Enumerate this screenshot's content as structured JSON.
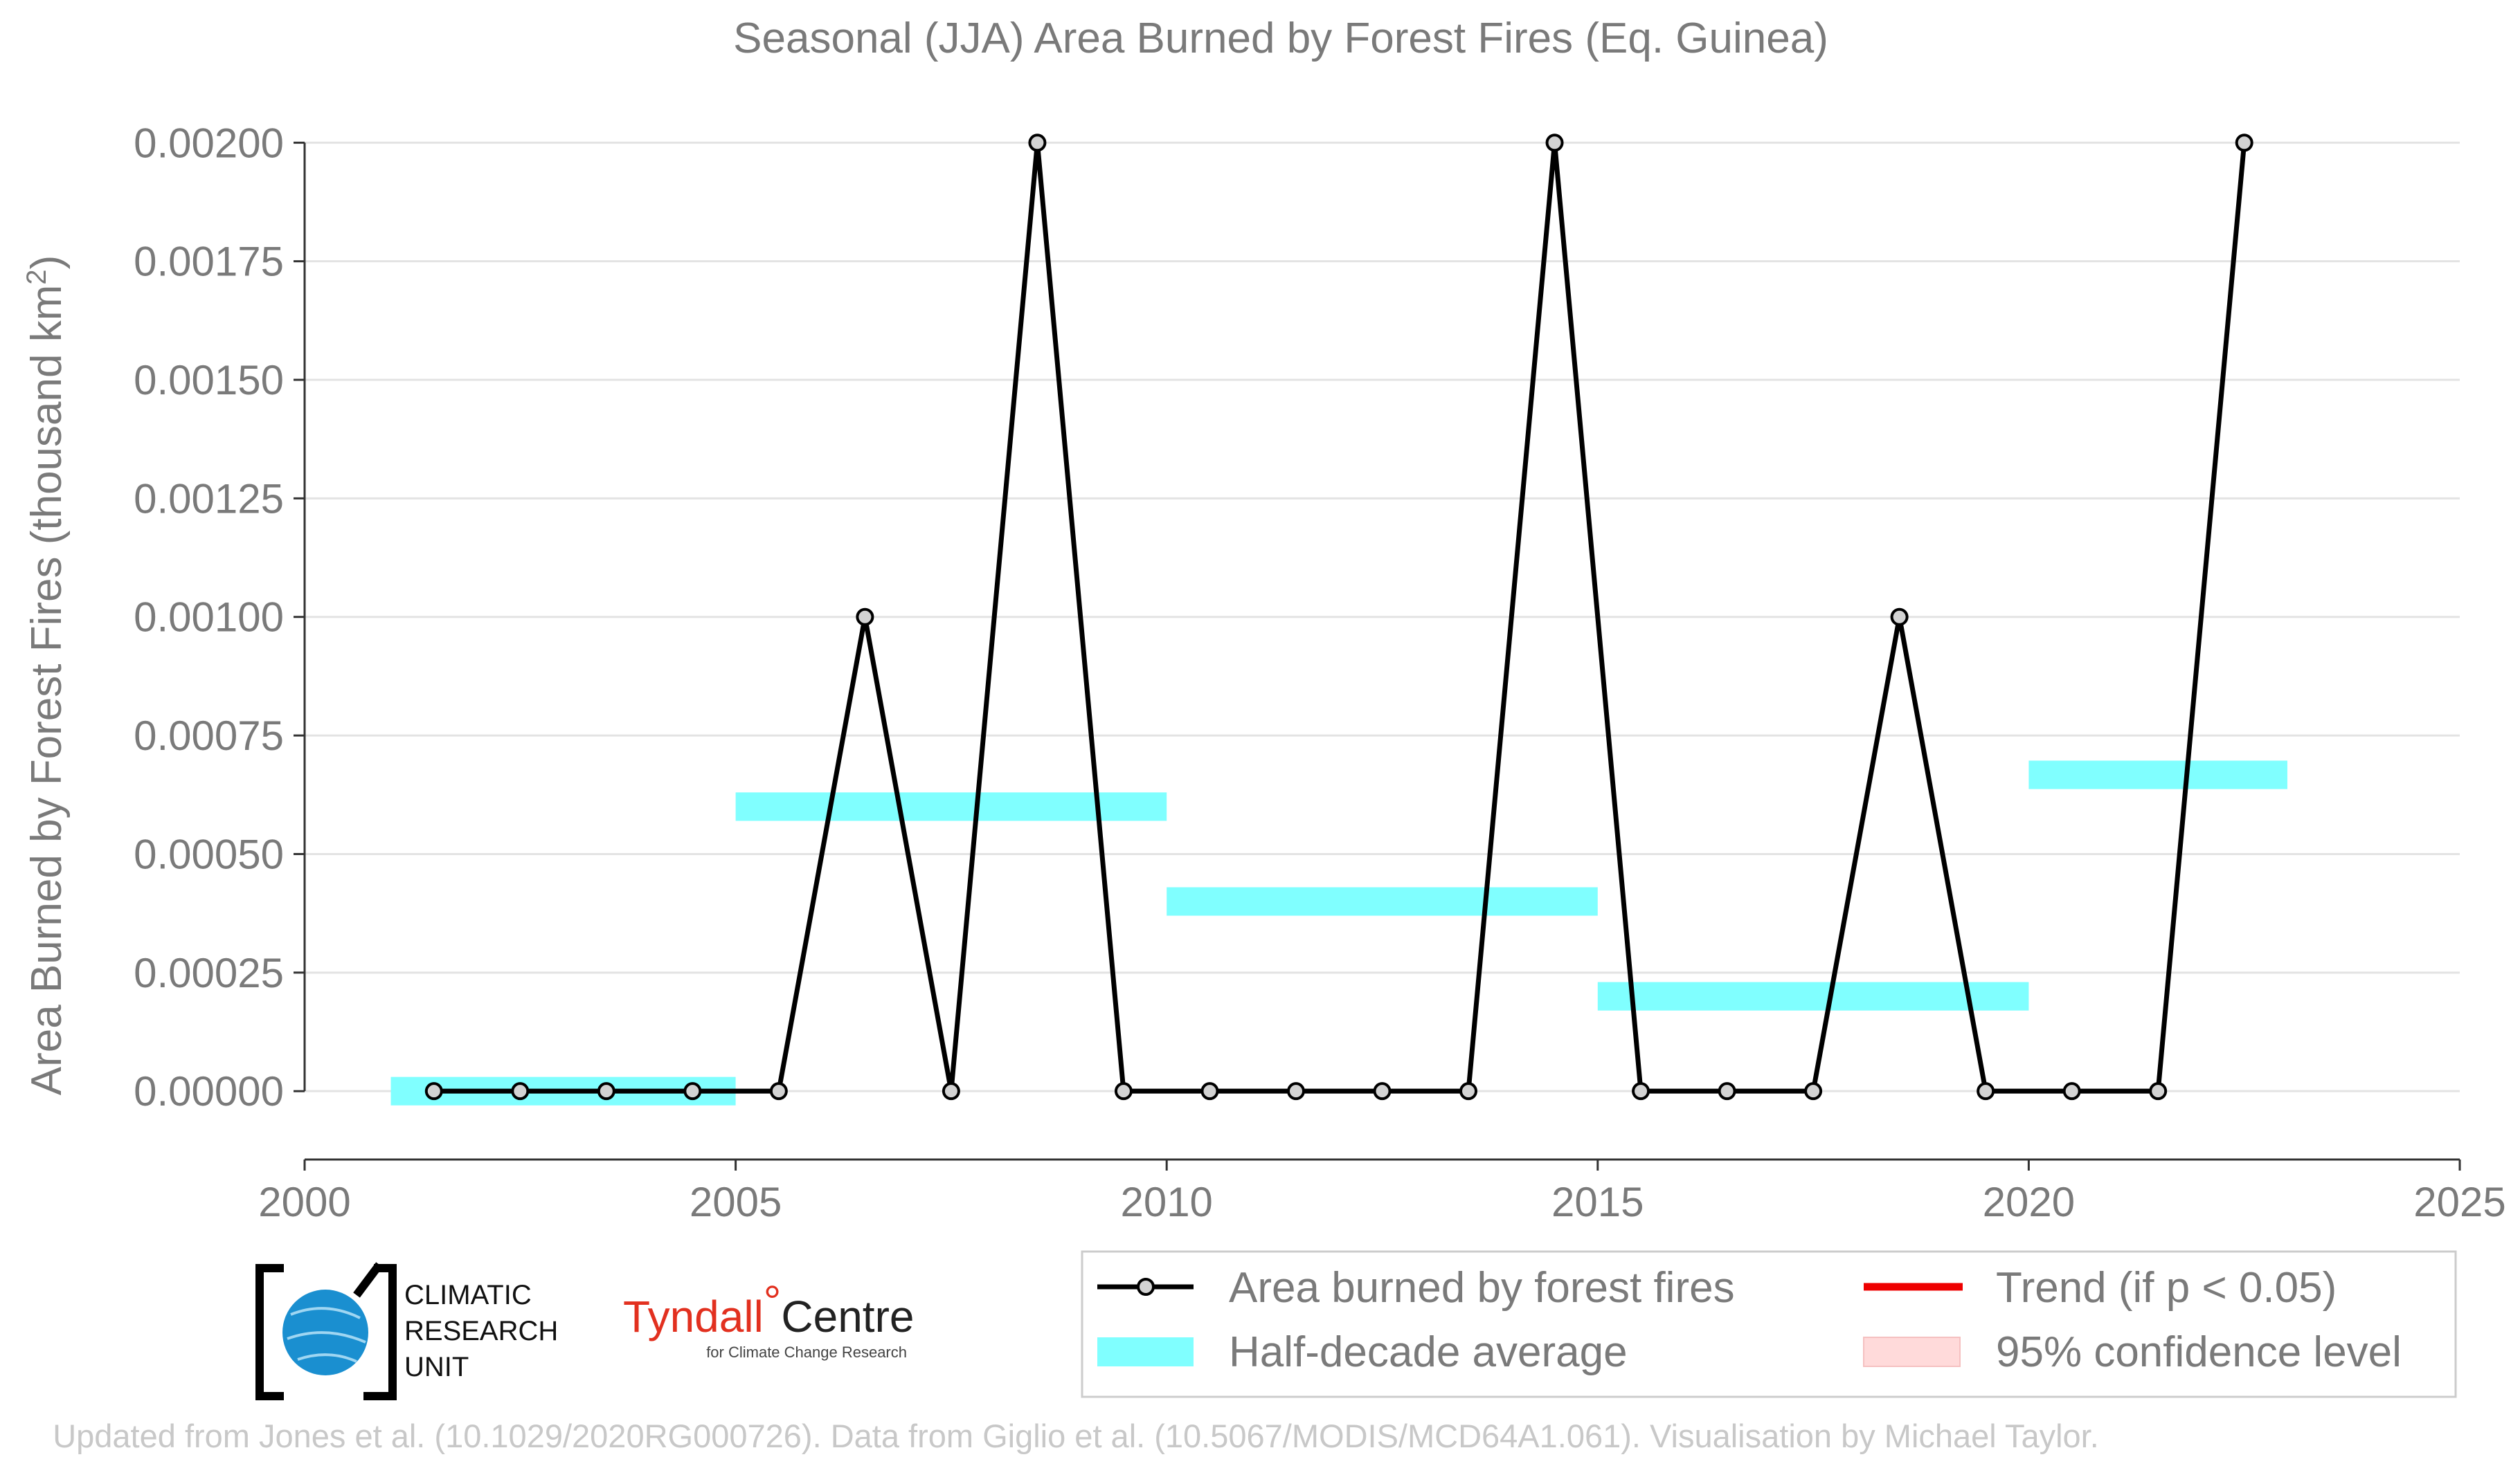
{
  "colors": {
    "line": "#000000",
    "marker_fill": "#d3d3d3",
    "half_decade": "#80ffff",
    "trend": "#ee0000",
    "confidence": "#ffdada",
    "text": "#7a7a7a",
    "grid": "#e3e3e3",
    "source_text": "#c8c8c8",
    "tyndall_red": "#e2301f",
    "cru_blue": "#1a8fd0"
  },
  "chart_data": {
    "type": "line",
    "title": "Seasonal (JJA) Area Burned by Forest Fires (Eq. Guinea)",
    "ylabel_main": "Area Burned by Forest Fires (thousand km",
    "ylabel_sup": "2",
    "ylabel_close": ")",
    "xlabel": "",
    "xlim": [
      2000,
      2025
    ],
    "ylim": [
      -0.00015,
      0.00205
    ],
    "x_ticks": [
      2000,
      2005,
      2010,
      2015,
      2020,
      2025
    ],
    "y_ticks": [
      0,
      0.00025,
      0.0005,
      0.00075,
      0.001,
      0.00125,
      0.0015,
      0.00175,
      0.002
    ],
    "y_tick_labels": [
      "0.00000",
      "0.00025",
      "0.00050",
      "0.00075",
      "0.00100",
      "0.00125",
      "0.00150",
      "0.00175",
      "0.00200"
    ],
    "grid": true,
    "series": [
      {
        "name": "Area burned by forest fires",
        "x": [
          2001.5,
          2002.5,
          2003.5,
          2004.5,
          2005.5,
          2006.5,
          2007.5,
          2008.5,
          2009.5,
          2010.5,
          2011.5,
          2012.5,
          2013.5,
          2014.5,
          2015.5,
          2016.5,
          2017.5,
          2018.5,
          2019.5,
          2020.5,
          2021.5,
          2022.5
        ],
        "y": [
          0,
          0,
          0,
          0,
          0,
          0.001,
          0,
          0.002,
          0,
          0,
          0,
          0,
          0,
          0.002,
          0,
          0,
          0,
          0.001,
          0,
          0,
          0,
          0.002
        ]
      }
    ],
    "half_decade_averages": [
      {
        "x_start": 2001,
        "x_end": 2005,
        "value": 0
      },
      {
        "x_start": 2005,
        "x_end": 2010,
        "value": 0.0006
      },
      {
        "x_start": 2010,
        "x_end": 2015,
        "value": 0.0004
      },
      {
        "x_start": 2015,
        "x_end": 2020,
        "value": 0.0002
      },
      {
        "x_start": 2020,
        "x_end": 2023,
        "value": 0.000667
      }
    ],
    "half_decade_band_halfwidth": 3e-05,
    "legend": {
      "placement": "bottom-right",
      "entries": [
        {
          "label": "Area burned by forest fires",
          "symbol": "line-marker"
        },
        {
          "label": "Trend (if p < 0.05)",
          "symbol": "red-line"
        },
        {
          "label": "Half-decade average",
          "symbol": "cyan-band"
        },
        {
          "label": "95% confidence level",
          "symbol": "pink-band"
        }
      ]
    }
  },
  "logos": {
    "cru_lines": [
      "CLIMATIC",
      "RESEARCH",
      "UNIT"
    ],
    "tyndall_main": "Tyndall",
    "tyndall_degree": "°",
    "tyndall_centre": "Centre",
    "tyndall_sub": "for Climate Change Research"
  },
  "source_note": "Updated from Jones et al. (10.1029/2020RG000726). Data from Giglio et al. (10.5067/MODIS/MCD64A1.061). Visualisation by Michael Taylor."
}
